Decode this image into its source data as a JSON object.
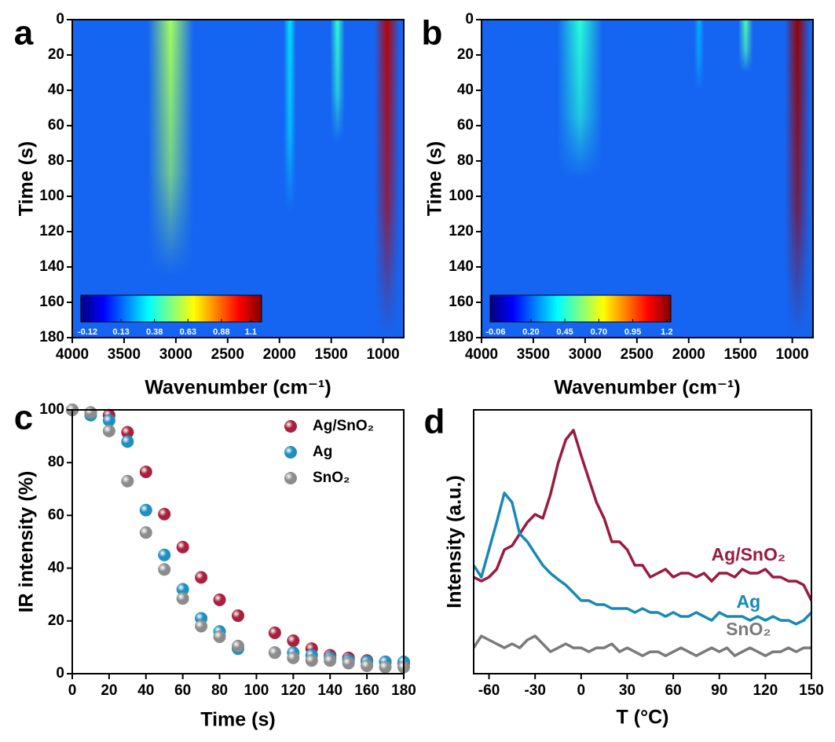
{
  "chart_data": [
    {
      "type": "heatmap",
      "panel": "a",
      "x_label": "Wavenumber (cm⁻¹)",
      "y_label": "Time (s)",
      "xlim": [
        4000,
        800
      ],
      "xticks": [
        4000,
        3500,
        3000,
        2500,
        2000,
        1500,
        1000
      ],
      "ylim": [
        180,
        0
      ],
      "yticks": [
        0,
        20,
        40,
        60,
        80,
        100,
        120,
        140,
        160,
        180
      ],
      "colorbar": {
        "lim": [
          -0.17,
          1.18
        ],
        "ticks": [
          -0.12,
          0.13,
          0.38,
          0.63,
          0.88,
          1.1
        ]
      },
      "peaks": [
        {
          "x": 3050,
          "fwhm": 220,
          "value": 0.55,
          "until": 145
        },
        {
          "x": 1900,
          "fwhm": 60,
          "value": 0.3,
          "until": 110
        },
        {
          "x": 1440,
          "fwhm": 70,
          "value": 0.4,
          "until": 70
        },
        {
          "x": 960,
          "fwhm": 120,
          "value": 1.1,
          "until": 180
        }
      ]
    },
    {
      "type": "heatmap",
      "panel": "b",
      "x_label": "Wavenumber (cm⁻¹)",
      "y_label": "Time (s)",
      "xlim": [
        4000,
        800
      ],
      "xticks": [
        4000,
        3500,
        3000,
        2500,
        2000,
        1500,
        1000
      ],
      "ylim": [
        180,
        0
      ],
      "yticks": [
        0,
        20,
        40,
        60,
        80,
        100,
        120,
        140,
        160,
        180
      ],
      "colorbar": {
        "lim": [
          -0.1,
          1.23
        ],
        "ticks": [
          -0.06,
          {
            "value": 0.2,
            "label": "0.20"
          },
          0.45,
          {
            "value": 0.7,
            "label": "0.70"
          },
          0.95,
          1.2
        ]
      },
      "peaks": [
        {
          "x": 3050,
          "fwhm": 220,
          "value": 0.45,
          "until": 90
        },
        {
          "x": 1900,
          "fwhm": 50,
          "value": 0.3,
          "until": 40
        },
        {
          "x": 1450,
          "fwhm": 70,
          "value": 0.5,
          "until": 30
        },
        {
          "x": 950,
          "fwhm": 120,
          "value": 1.2,
          "until": 180
        }
      ]
    },
    {
      "type": "scatter",
      "panel": "c",
      "x_label": "Time (s)",
      "y_label": "IR intensity (%)",
      "xlim": [
        0,
        180
      ],
      "xticks": [
        0,
        20,
        40,
        60,
        80,
        100,
        120,
        140,
        160,
        180
      ],
      "ylim": [
        0,
        100
      ],
      "yticks": [
        0,
        20,
        40,
        60,
        80,
        100
      ],
      "legend": "upper right",
      "x": [
        0,
        10,
        20,
        30,
        40,
        50,
        60,
        70,
        80,
        90,
        110,
        120,
        130,
        140,
        150,
        160,
        170,
        180
      ],
      "series": [
        {
          "name": "Ag/SnO₂",
          "color": "#a8213c",
          "values": [
            100,
            99,
            98,
            91.5,
            76.5,
            60.5,
            48,
            36.5,
            28,
            22,
            15.5,
            12.5,
            9.5,
            7,
            6,
            5,
            4.5,
            4
          ]
        },
        {
          "name": "Ag",
          "color": "#1e8fbf",
          "values": [
            100,
            98,
            96,
            88,
            62,
            45,
            32,
            21,
            16,
            9.5,
            8,
            8,
            7,
            6,
            5,
            4.5,
            4.5,
            4.5
          ]
        },
        {
          "name": "SnO₂",
          "color": "#8c8c8c",
          "values": [
            100,
            99,
            92,
            73,
            53.5,
            39.5,
            28.5,
            18,
            14,
            10.5,
            8,
            6,
            5,
            5,
            4,
            3,
            2.5,
            2.5
          ]
        }
      ]
    },
    {
      "type": "line",
      "panel": "d",
      "x_label": "T (°C)",
      "y_label": "Intensity (a.u.)",
      "xlim": [
        -70,
        150
      ],
      "xticks": [
        -60,
        -30,
        0,
        30,
        60,
        90,
        120,
        150
      ],
      "ylim": [
        0,
        100
      ],
      "legend": "inline",
      "x": [
        -70,
        -65,
        -60,
        -55,
        -50,
        -45,
        -40,
        -35,
        -30,
        -25,
        -20,
        -15,
        -10,
        -5,
        0,
        5,
        10,
        15,
        20,
        25,
        30,
        35,
        40,
        45,
        50,
        55,
        60,
        65,
        70,
        75,
        80,
        85,
        90,
        95,
        100,
        105,
        110,
        115,
        120,
        125,
        130,
        135,
        140,
        145,
        150
      ],
      "series": [
        {
          "name": "Ag/SnO₂",
          "color": "#9b1b40",
          "values": [
            36.6,
            35.1,
            36.6,
            39.6,
            47.0,
            48.5,
            53.0,
            57.4,
            60.4,
            58.9,
            67.9,
            79.8,
            88.7,
            92.3,
            82.7,
            73.8,
            64.9,
            58.9,
            50.0,
            50.0,
            47.0,
            41.1,
            41.1,
            36.6,
            38.1,
            39.6,
            36.6,
            38.1,
            38.1,
            36.6,
            38.1,
            35.1,
            38.1,
            38.1,
            36.6,
            39.6,
            38.1,
            38.1,
            39.6,
            36.6,
            36.6,
            35.1,
            35.1,
            33.6,
            27.7
          ]
        },
        {
          "name": "Ag",
          "color": "#1889b6",
          "values": [
            41.1,
            36.6,
            47.0,
            57.4,
            68.5,
            64.9,
            53.0,
            50.0,
            45.5,
            41.1,
            38.1,
            35.7,
            33.6,
            30.7,
            27.7,
            27.7,
            26.2,
            26.2,
            24.7,
            24.7,
            24.7,
            23.2,
            24.7,
            23.2,
            23.2,
            21.7,
            23.2,
            21.7,
            21.7,
            23.2,
            21.7,
            20.2,
            23.2,
            21.7,
            21.7,
            21.7,
            20.2,
            21.7,
            20.2,
            21.7,
            20.2,
            20.2,
            18.8,
            20.2,
            23.2
          ]
        },
        {
          "name": "SnO₂",
          "color": "#7a7a7a",
          "values": [
            9.8,
            14.3,
            12.8,
            11.3,
            9.8,
            11.3,
            9.8,
            12.8,
            14.3,
            11.3,
            8.3,
            9.8,
            11.3,
            9.8,
            9.8,
            8.3,
            9.8,
            9.8,
            11.3,
            8.3,
            9.8,
            8.3,
            6.8,
            8.3,
            8.3,
            6.8,
            8.3,
            9.8,
            8.3,
            6.8,
            8.3,
            9.8,
            8.3,
            9.8,
            6.8,
            8.3,
            9.8,
            8.3,
            6.8,
            8.3,
            8.3,
            9.8,
            8.3,
            9.8,
            9.8
          ]
        }
      ]
    }
  ]
}
